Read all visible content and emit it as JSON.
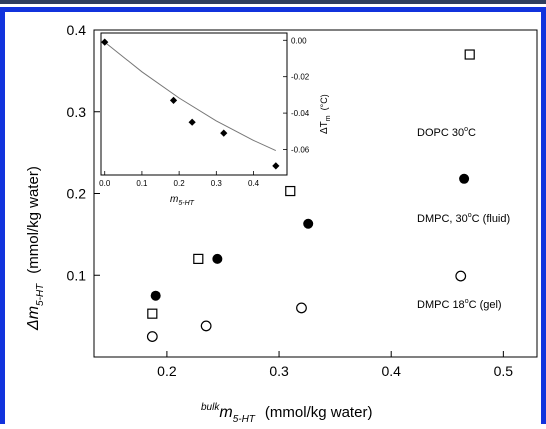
{
  "colors": {
    "border": "#1133dd",
    "top_rule": "#2f3e5f",
    "ink": "#000000",
    "inset_curve": "#777777"
  },
  "chart_data": [
    {
      "type": "scatter",
      "title": "",
      "xlabel_sup": "bulk",
      "xlabel_main": "m",
      "xlabel_sub": "5-HT",
      "xlabel_units": "(mmol/kg water)",
      "ylabel_main": "Δm",
      "ylabel_sub": "5-HT",
      "ylabel_units": "(mmol/kg water)",
      "xlim": [
        0.135,
        0.53
      ],
      "ylim": [
        0.0,
        0.4
      ],
      "x_ticks": [
        0.2,
        0.3,
        0.4,
        0.5
      ],
      "x_tick_labels": [
        "0.2",
        "0.3",
        "0.4",
        "0.5"
      ],
      "y_ticks": [
        0.1,
        0.2,
        0.3,
        0.4
      ],
      "y_tick_labels": [
        "0.1",
        "0.2",
        "0.3",
        "0.4"
      ],
      "grid": false,
      "series": [
        {
          "name": "DOPC 30°C",
          "label_parts": [
            "DOPC 30",
            "o",
            "C"
          ],
          "marker": "open-square",
          "points": [
            [
              0.187,
              0.053
            ],
            [
              0.228,
              0.12
            ],
            [
              0.31,
              0.203
            ],
            [
              0.47,
              0.37
            ]
          ]
        },
        {
          "name": "DMPC, 30°C (fluid)",
          "label_parts": [
            "DMPC, 30",
            "o",
            "C (fluid)"
          ],
          "marker": "filled-circle",
          "points": [
            [
              0.19,
              0.075
            ],
            [
              0.245,
              0.12
            ],
            [
              0.326,
              0.163
            ],
            [
              0.465,
              0.218
            ]
          ]
        },
        {
          "name": "DMPC 18°C (gel)",
          "label_parts": [
            "DMPC 18",
            "o",
            "C (gel)"
          ],
          "marker": "open-circle",
          "points": [
            [
              0.187,
              0.025
            ],
            [
              0.235,
              0.038
            ],
            [
              0.32,
              0.06
            ],
            [
              0.462,
              0.099
            ]
          ]
        }
      ]
    },
    {
      "type": "scatter",
      "title": "",
      "xlabel_main": "m",
      "xlabel_sub": "5-HT",
      "ylabel_main": "ΔT",
      "ylabel_sub": "m",
      "ylabel_units": "(°C)",
      "xlim": [
        -0.01,
        0.49
      ],
      "ylim": [
        -0.074,
        0.004
      ],
      "x_ticks": [
        0.0,
        0.1,
        0.2,
        0.3,
        0.4
      ],
      "x_tick_labels": [
        "0.0",
        "0.1",
        "0.2",
        "0.3",
        "0.4"
      ],
      "y_ticks": [
        0.0,
        -0.02,
        -0.04,
        -0.06
      ],
      "y_tick_labels": [
        "0.00",
        "-0.02",
        "-0.04",
        "-0.06"
      ],
      "grid": false,
      "points": [
        [
          0.0,
          -0.001
        ],
        [
          0.185,
          -0.033
        ],
        [
          0.235,
          -0.045
        ],
        [
          0.32,
          -0.051
        ],
        [
          0.46,
          -0.069
        ]
      ],
      "fit_curve": [
        [
          0.0,
          -0.001
        ],
        [
          0.1,
          -0.0173
        ],
        [
          0.2,
          -0.0317
        ],
        [
          0.3,
          -0.0443
        ],
        [
          0.4,
          -0.055
        ],
        [
          0.46,
          -0.0606
        ]
      ]
    }
  ]
}
